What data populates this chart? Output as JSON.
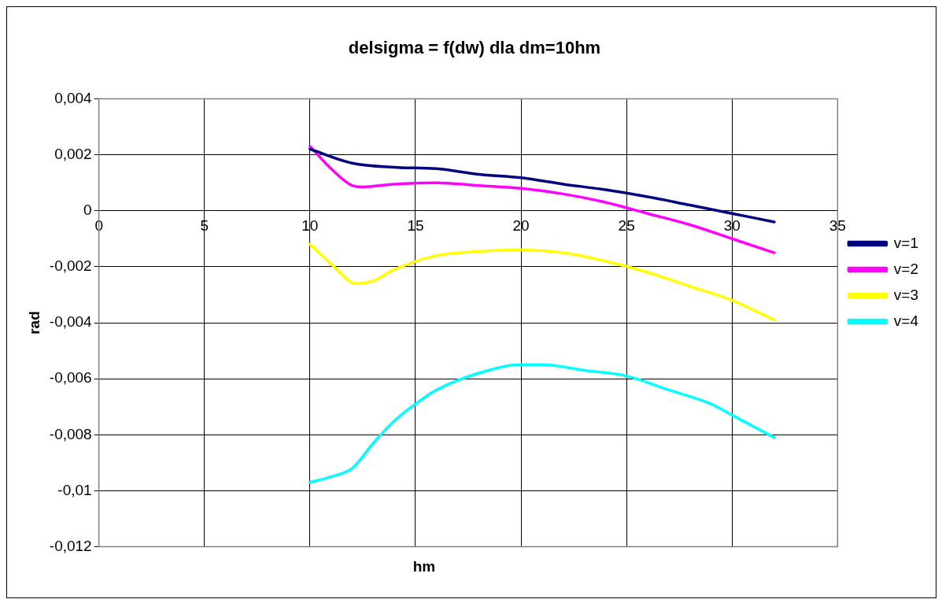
{
  "chart_data": {
    "type": "line",
    "title": "delsigma = f(dw) dla dm=10hm",
    "xlabel": "hm",
    "ylabel": "rad",
    "xlim": [
      0,
      35
    ],
    "xticks": [
      0,
      5,
      10,
      15,
      20,
      25,
      30,
      35
    ],
    "ylim": [
      -0.012,
      0.004
    ],
    "yticks": [
      {
        "value": 0.004,
        "label": "0,004"
      },
      {
        "value": 0.002,
        "label": "0,002"
      },
      {
        "value": 0,
        "label": "0"
      },
      {
        "value": -0.002,
        "label": "-0,002"
      },
      {
        "value": -0.004,
        "label": "-0,004"
      },
      {
        "value": -0.006,
        "label": "-0,006"
      },
      {
        "value": -0.008,
        "label": "-0,008"
      },
      {
        "value": -0.01,
        "label": "-0,01"
      },
      {
        "value": -0.012,
        "label": "-0,012"
      }
    ],
    "grid": true,
    "legend": "right",
    "marker": "none",
    "line_style": "solid",
    "series": [
      {
        "name": "v=1",
        "color": "#000080",
        "x": [
          10,
          12,
          14,
          16,
          18,
          20,
          22,
          24,
          26,
          28,
          30,
          32
        ],
        "values": [
          0.0022,
          0.0017,
          0.00155,
          0.0015,
          0.0013,
          0.00118,
          0.00095,
          0.00075,
          0.0005,
          0.0002,
          -0.0001,
          -0.0004
        ]
      },
      {
        "name": "v=2",
        "color": "#ff00ff",
        "x": [
          10,
          11,
          12,
          12.5,
          14,
          16,
          18,
          20,
          22,
          24,
          26,
          28,
          30,
          32
        ],
        "values": [
          0.0023,
          0.0015,
          0.0009,
          0.00085,
          0.00095,
          0.001,
          0.0009,
          0.0008,
          0.0006,
          0.0003,
          -0.0001,
          -0.0005,
          -0.001,
          -0.0015
        ]
      },
      {
        "name": "v=3",
        "color": "#ffff00",
        "x": [
          10,
          11,
          12.2,
          13,
          14,
          16,
          18,
          20,
          22,
          24,
          26,
          28,
          30,
          32
        ],
        "values": [
          -0.0012,
          -0.0019,
          -0.0026,
          -0.0025,
          -0.0021,
          -0.0016,
          -0.00145,
          -0.0014,
          -0.0015,
          -0.0018,
          -0.0022,
          -0.0027,
          -0.0032,
          -0.0039
        ]
      },
      {
        "name": "v=4",
        "color": "#00ffff",
        "x": [
          10,
          11,
          12,
          13,
          14,
          15,
          16,
          18,
          20,
          21,
          23,
          25,
          27,
          29,
          30,
          32
        ],
        "values": [
          -0.0097,
          -0.0095,
          -0.0092,
          -0.0083,
          -0.0075,
          -0.0069,
          -0.0064,
          -0.0058,
          -0.0055,
          -0.0055,
          -0.0057,
          -0.0059,
          -0.0064,
          -0.0069,
          -0.0073,
          -0.0081
        ]
      }
    ]
  }
}
